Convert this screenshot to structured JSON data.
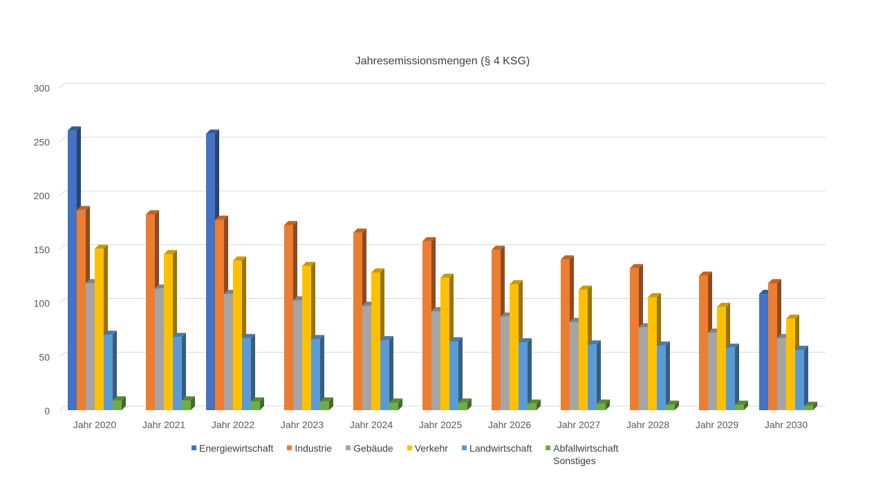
{
  "chart_data": {
    "type": "bar",
    "title": "Jahresemissionsmengen (§ 4 KSG)",
    "xlabel": "",
    "ylabel": "",
    "ylim": [
      0,
      300
    ],
    "yticks": [
      0,
      50,
      100,
      150,
      200,
      250,
      300
    ],
    "grid": true,
    "legend_position": "bottom",
    "style": "3d-clustered-column",
    "categories": [
      "Jahr 2020",
      "Jahr 2021",
      "Jahr 2022",
      "Jahr 2023",
      "Jahr 2024",
      "Jahr 2025",
      "Jahr 2026",
      "Jahr 2027",
      "Jahr 2028",
      "Jahr 2029",
      "Jahr 2030"
    ],
    "series": [
      {
        "name": "Energiewirtschaft",
        "color": "#4472C4",
        "values": [
          260,
          null,
          257,
          null,
          null,
          null,
          null,
          null,
          null,
          null,
          108
        ]
      },
      {
        "name": "Industrie",
        "color": "#ED7D31",
        "values": [
          186,
          182,
          177,
          172,
          165,
          157,
          149,
          140,
          132,
          125,
          118
        ]
      },
      {
        "name": "Gebäude",
        "color": "#A5A5A5",
        "values": [
          118,
          113,
          108,
          102,
          97,
          92,
          87,
          82,
          77,
          72,
          67
        ]
      },
      {
        "name": "Verkehr",
        "color": "#FFC000",
        "values": [
          150,
          145,
          139,
          134,
          128,
          123,
          117,
          112,
          105,
          96,
          85
        ]
      },
      {
        "name": "Landwirtschaft",
        "color": "#5B9BD5",
        "values": [
          70,
          68,
          67,
          66,
          65,
          64,
          63,
          61,
          60,
          58,
          56
        ]
      },
      {
        "name": "Abfallwirtschaft\nSonstiges",
        "color": "#70AD47",
        "values": [
          9,
          9,
          8,
          8,
          7,
          7,
          6,
          6,
          5,
          5,
          4
        ]
      }
    ]
  }
}
